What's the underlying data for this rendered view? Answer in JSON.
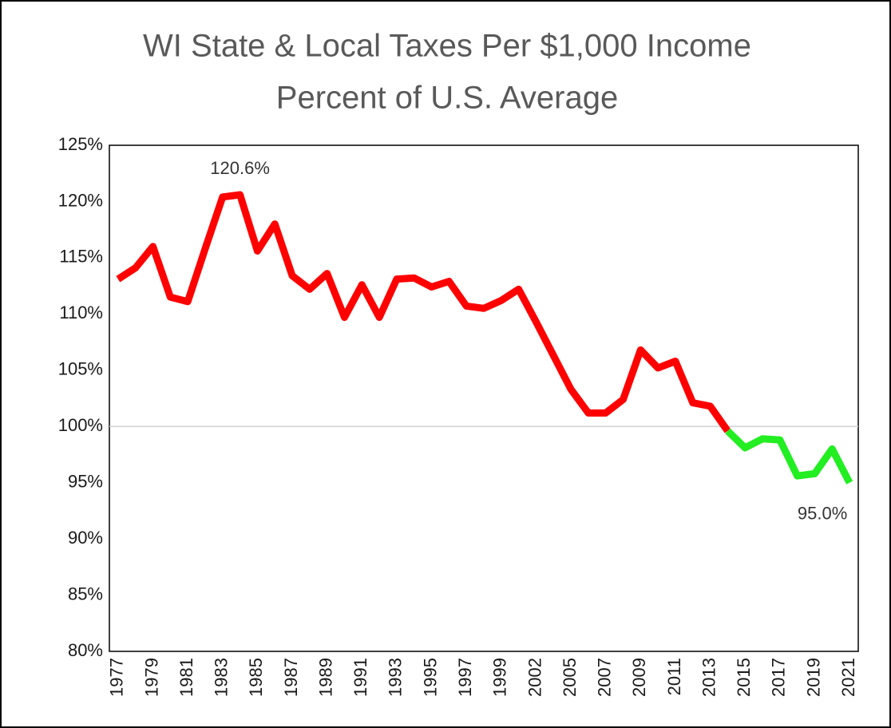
{
  "chart_data": {
    "type": "line",
    "title": [
      "WI State & Local Taxes Per $1,000 Income",
      "Percent of U.S. Average"
    ],
    "categories": [
      "1977",
      null,
      "1979",
      null,
      "1981",
      null,
      "1983",
      null,
      "1985",
      null,
      "1987",
      null,
      "1989",
      null,
      "1991",
      null,
      "1993",
      null,
      "1995",
      null,
      "1997",
      null,
      "1999",
      null,
      "2002",
      null,
      "2005",
      null,
      "2007",
      null,
      "2009",
      null,
      "2011",
      null,
      "2013",
      null,
      "2015",
      null,
      "2017",
      null,
      "2019",
      null,
      "2021"
    ],
    "series": [
      {
        "color": "#ff0000",
        "values": [
          113.1,
          114.1,
          116.0,
          111.5,
          111.1,
          115.8,
          120.4,
          120.6,
          115.6,
          118.0,
          113.4,
          112.2,
          113.6,
          109.7,
          112.6,
          109.7,
          113.1,
          113.2,
          112.4,
          112.9,
          110.7,
          110.5,
          111.2,
          112.2,
          109.3,
          106.3,
          103.3,
          101.2,
          101.2,
          102.4,
          106.8,
          105.2,
          105.8,
          102.1,
          101.8,
          99.6,
          null,
          null,
          null,
          null,
          null,
          null,
          null
        ]
      },
      {
        "color": "#22ee22",
        "values": [
          null,
          null,
          null,
          null,
          null,
          null,
          null,
          null,
          null,
          null,
          null,
          null,
          null,
          null,
          null,
          null,
          null,
          null,
          null,
          null,
          null,
          null,
          null,
          null,
          null,
          null,
          null,
          null,
          null,
          null,
          null,
          null,
          null,
          null,
          null,
          99.6,
          98.1,
          98.9,
          98.8,
          95.6,
          95.8,
          98.0,
          95.0
        ]
      }
    ],
    "ylim": [
      80,
      125
    ],
    "yticks": [
      {
        "value": 80,
        "label": "80%"
      },
      {
        "value": 85,
        "label": "85%"
      },
      {
        "value": 90,
        "label": "90%"
      },
      {
        "value": 95,
        "label": "95%"
      },
      {
        "value": 100,
        "label": "100%"
      },
      {
        "value": 105,
        "label": "105%"
      },
      {
        "value": 110,
        "label": "110%"
      },
      {
        "value": 115,
        "label": "115%"
      },
      {
        "value": 120,
        "label": "120%"
      },
      {
        "value": 125,
        "label": "125%"
      }
    ],
    "reference_line": 100,
    "annotations": [
      "120.6%",
      "95.0%"
    ]
  }
}
